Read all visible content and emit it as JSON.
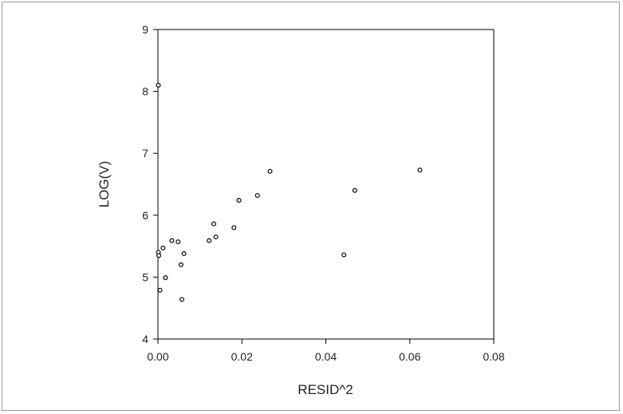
{
  "chart_data": {
    "type": "scatter",
    "title": "",
    "xlabel": "RESID^2",
    "ylabel": "LOG(V)",
    "xlim": [
      0,
      0.08
    ],
    "ylim": [
      4,
      9
    ],
    "x_ticks": [
      "0.00",
      "0.02",
      "0.04",
      "0.06",
      "0.08"
    ],
    "y_ticks": [
      "4",
      "5",
      "6",
      "7",
      "8",
      "9"
    ],
    "grid": false,
    "legend": "none",
    "marker": "open-circle",
    "colors": {
      "axis": "#000000",
      "marker": "#000000",
      "text": "#222222"
    },
    "series": [
      {
        "points": [
          {
            "x": 0.0001,
            "y": 8.1
          },
          {
            "x": 0.0001,
            "y": 5.4
          },
          {
            "x": 0.0002,
            "y": 5.35
          },
          {
            "x": 0.0005,
            "y": 4.79
          },
          {
            "x": 0.0012,
            "y": 5.47
          },
          {
            "x": 0.0018,
            "y": 4.99
          },
          {
            "x": 0.0033,
            "y": 5.59
          },
          {
            "x": 0.0048,
            "y": 5.57
          },
          {
            "x": 0.0055,
            "y": 5.2
          },
          {
            "x": 0.0057,
            "y": 4.64
          },
          {
            "x": 0.0062,
            "y": 5.38
          },
          {
            "x": 0.0122,
            "y": 5.59
          },
          {
            "x": 0.0133,
            "y": 5.86
          },
          {
            "x": 0.0138,
            "y": 5.65
          },
          {
            "x": 0.0181,
            "y": 5.8
          },
          {
            "x": 0.0193,
            "y": 6.24
          },
          {
            "x": 0.0237,
            "y": 6.32
          },
          {
            "x": 0.0267,
            "y": 6.71
          },
          {
            "x": 0.0443,
            "y": 5.36
          },
          {
            "x": 0.0469,
            "y": 6.4
          },
          {
            "x": 0.0624,
            "y": 6.73
          }
        ]
      }
    ]
  }
}
